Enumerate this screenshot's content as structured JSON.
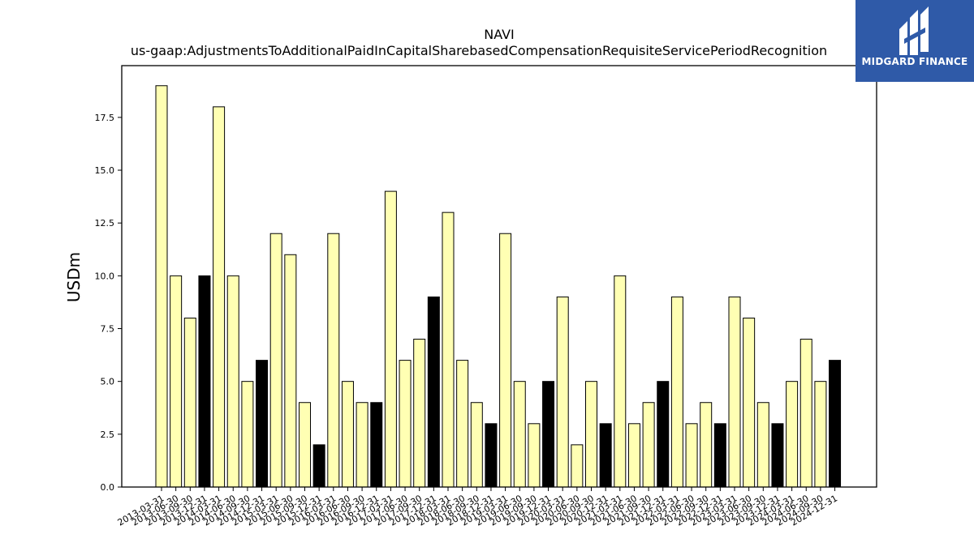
{
  "chart_data": {
    "type": "bar",
    "title": "NAVI",
    "subtitle": "us-gaap:AdjustmentsToAdditionalPaidInCapitalSharebasedCompensationRequisiteServicePeriodRecognition",
    "ylabel": "USDm",
    "xlabel": "",
    "ylim": [
      0,
      19.95
    ],
    "yticks": [
      "0.0",
      "2.5",
      "5.0",
      "7.5",
      "10.0",
      "12.5",
      "15.0",
      "17.5"
    ],
    "grid": false,
    "colors": {
      "quarter": "#ffffb3",
      "year_end": "#000000",
      "edge": "#000000"
    },
    "categories": [
      "2013-03-31",
      "2013-06-30",
      "2013-09-30",
      "2013-12-31",
      "2014-03-31",
      "2014-06-30",
      "2014-09-30",
      "2014-12-31",
      "2015-03-31",
      "2015-06-30",
      "2015-09-30",
      "2015-12-31",
      "2016-03-31",
      "2016-06-30",
      "2016-09-30",
      "2016-12-31",
      "2017-03-31",
      "2017-06-30",
      "2017-09-30",
      "2017-12-31",
      "2018-03-31",
      "2018-06-30",
      "2018-09-30",
      "2018-12-31",
      "2019-03-31",
      "2019-06-30",
      "2019-09-30",
      "2019-12-31",
      "2020-03-31",
      "2020-06-30",
      "2020-09-30",
      "2020-12-31",
      "2021-03-31",
      "2021-06-30",
      "2021-09-30",
      "2021-12-31",
      "2022-03-31",
      "2022-06-30",
      "2022-09-30",
      "2022-12-31",
      "2023-03-31",
      "2023-06-30",
      "2023-09-30",
      "2023-12-31",
      "2024-03-31",
      "2024-06-30",
      "2024-09-30",
      "2024-12-31"
    ],
    "values": [
      19,
      10,
      8,
      10,
      18,
      10,
      5,
      6,
      12,
      11,
      4,
      2,
      12,
      5,
      4,
      4,
      14,
      6,
      7,
      9,
      13,
      6,
      4,
      3,
      12,
      5,
      3,
      5,
      9,
      2,
      5,
      3,
      10,
      3,
      4,
      5,
      9,
      3,
      4,
      3,
      9,
      8,
      4,
      3,
      5,
      7,
      5,
      6
    ],
    "year_end": [
      false,
      false,
      false,
      true,
      false,
      false,
      false,
      true,
      false,
      false,
      false,
      true,
      false,
      false,
      false,
      true,
      false,
      false,
      false,
      true,
      false,
      false,
      false,
      true,
      false,
      false,
      false,
      true,
      false,
      false,
      false,
      true,
      false,
      false,
      false,
      true,
      false,
      false,
      false,
      true,
      false,
      false,
      false,
      true,
      false,
      false,
      false,
      true
    ]
  },
  "logo": {
    "text": "MIDGARD FINANCE",
    "icon": "midgard-logo-icon"
  }
}
